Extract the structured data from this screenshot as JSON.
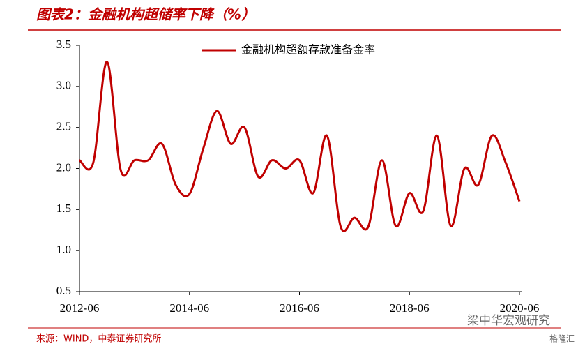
{
  "chart_data": {
    "type": "line",
    "title": "图表2：金融机构超储率下降（%）",
    "source": "来源：WIND，中泰证券研究所",
    "watermark": "梁中华宏观研究",
    "watermark_logo": "格隆汇",
    "categories": [
      "2012-06",
      null,
      null,
      null,
      null,
      null,
      null,
      null,
      "2014-06",
      null,
      null,
      null,
      null,
      null,
      null,
      null,
      "2016-06",
      null,
      null,
      null,
      null,
      null,
      null,
      null,
      "2018-06",
      null,
      null,
      null,
      null,
      null,
      null,
      null,
      "2020-06"
    ],
    "series": [
      {
        "name": "金融机构超额存款准备金率",
        "color": "#c00000",
        "values": [
          2.1,
          2.07,
          3.3,
          1.98,
          2.1,
          2.1,
          2.3,
          1.8,
          1.69,
          2.24,
          2.7,
          2.3,
          2.5,
          1.9,
          2.1,
          2.0,
          2.1,
          1.7,
          2.4,
          1.29,
          1.4,
          1.29,
          2.1,
          1.3,
          1.7,
          1.48,
          2.4,
          1.3,
          2.0,
          1.8,
          2.4,
          2.07,
          1.6
        ]
      }
    ],
    "ylim": [
      0.5,
      3.5
    ],
    "yticks": [
      0.5,
      {
        "value": 1,
        "label": "1.0"
      },
      1.5,
      {
        "value": 2,
        "label": "2.0"
      },
      2.5,
      {
        "value": 3,
        "label": "3.0"
      },
      3.5
    ],
    "grid": false,
    "legend": "top"
  }
}
